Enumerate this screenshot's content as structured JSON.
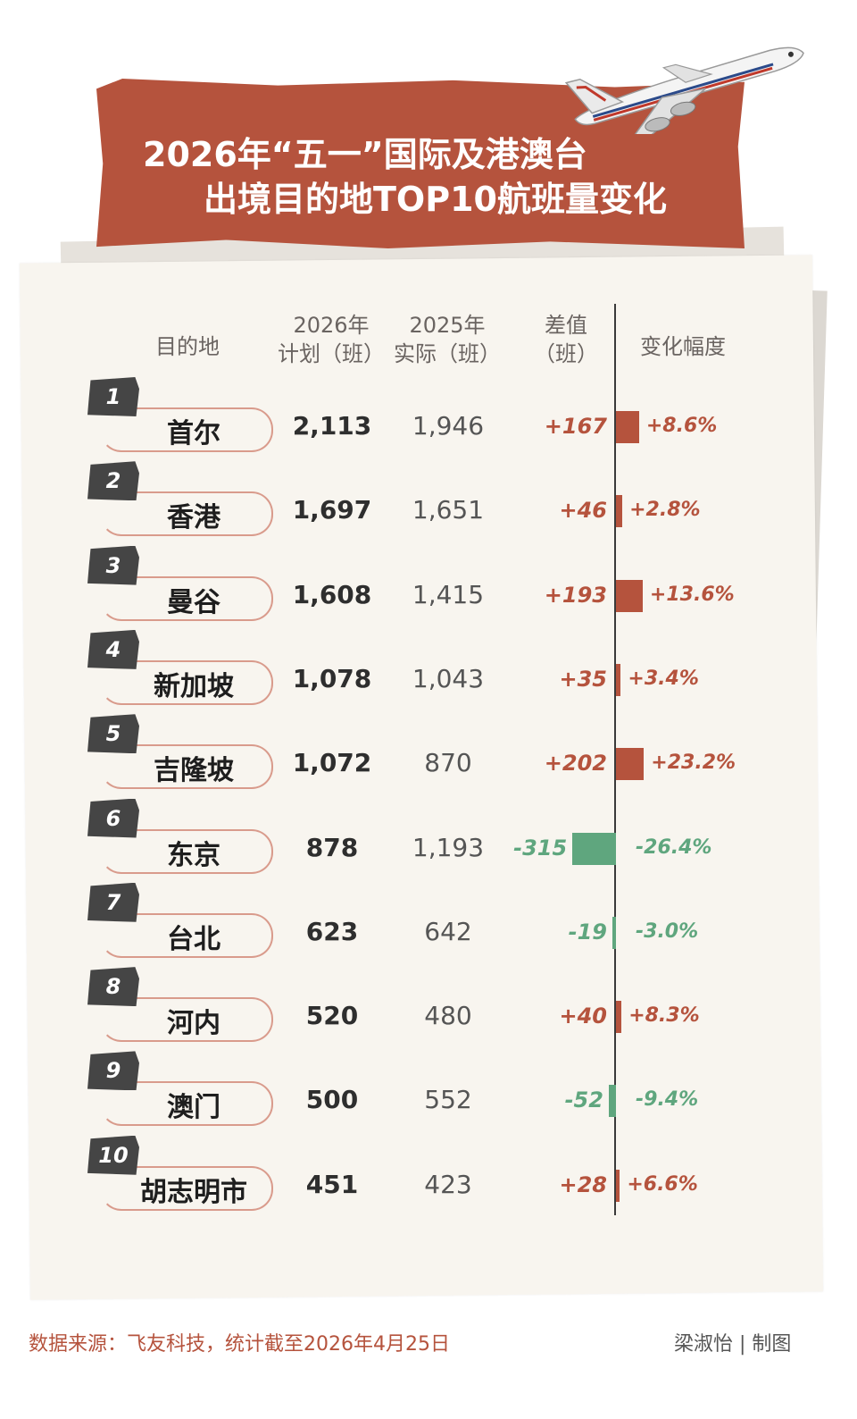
{
  "title": {
    "line1": "2026年“五一”国际及港澳台",
    "line2": "出境目的地TOP10航班量变化"
  },
  "headers": {
    "destination": "目的地",
    "plan2026_a": "2026年",
    "plan2026_b": "计划（班）",
    "actual2025_a": "2025年",
    "actual2025_b": "实际（班）",
    "diff_a": "差值",
    "diff_b": "（班）",
    "change": "变化幅度"
  },
  "colors": {
    "positive": "#b5533d",
    "negative": "#5fa67e",
    "banner": "#b5533d"
  },
  "chart_data": {
    "type": "table",
    "categories": [
      "首尔",
      "香港",
      "曼谷",
      "新加坡",
      "吉隆坡",
      "东京",
      "台北",
      "河内",
      "澳门",
      "胡志明市"
    ],
    "rows": [
      {
        "rank": "1",
        "dest": "首尔",
        "plan2026": "2,113",
        "actual2025": "1,946",
        "diff": "+167",
        "diff_value": 167,
        "pct": "+8.6%"
      },
      {
        "rank": "2",
        "dest": "香港",
        "plan2026": "1,697",
        "actual2025": "1,651",
        "diff": "+46",
        "diff_value": 46,
        "pct": "+2.8%"
      },
      {
        "rank": "3",
        "dest": "曼谷",
        "plan2026": "1,608",
        "actual2025": "1,415",
        "diff": "+193",
        "diff_value": 193,
        "pct": "+13.6%"
      },
      {
        "rank": "4",
        "dest": "新加坡",
        "plan2026": "1,078",
        "actual2025": "1,043",
        "diff": "+35",
        "diff_value": 35,
        "pct": "+3.4%"
      },
      {
        "rank": "5",
        "dest": "吉隆坡",
        "plan2026": "1,072",
        "actual2025": "870",
        "diff": "+202",
        "diff_value": 202,
        "pct": "+23.2%"
      },
      {
        "rank": "6",
        "dest": "东京",
        "plan2026": "878",
        "actual2025": "1,193",
        "diff": "-315",
        "diff_value": -315,
        "pct": "-26.4%"
      },
      {
        "rank": "7",
        "dest": "台北",
        "plan2026": "623",
        "actual2025": "642",
        "diff": "-19",
        "diff_value": -19,
        "pct": "-3.0%"
      },
      {
        "rank": "8",
        "dest": "河内",
        "plan2026": "520",
        "actual2025": "480",
        "diff": "+40",
        "diff_value": 40,
        "pct": "+8.3%"
      },
      {
        "rank": "9",
        "dest": "澳门",
        "plan2026": "500",
        "actual2025": "552",
        "diff": "-52",
        "diff_value": -52,
        "pct": "-9.4%"
      },
      {
        "rank": "10",
        "dest": "胡志明市",
        "plan2026": "451",
        "actual2025": "423",
        "diff": "+28",
        "diff_value": 28,
        "pct": "+6.6%"
      }
    ]
  },
  "footer": {
    "source": "数据来源：飞友科技，统计截至2026年4月25日",
    "credit": "梁淑怡 | 制图"
  },
  "decor": {
    "plane": "airplane-icon"
  }
}
